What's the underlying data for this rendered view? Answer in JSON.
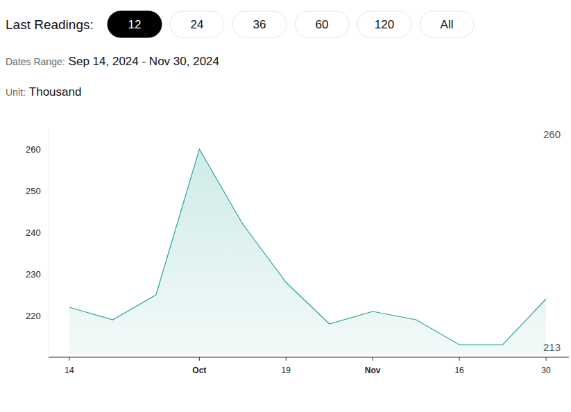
{
  "page": {
    "label": "Last Readings:",
    "buttons": [
      "12",
      "24",
      "36",
      "60",
      "120",
      "All"
    ],
    "active": "12",
    "dates_label": "Dates Range:",
    "dates_value": "Sep 14, 2024 - Nov 30, 2024",
    "unit_label": "Unit:",
    "unit_value": "Thousand"
  },
  "chart_data": {
    "type": "area",
    "categories": [
      "14",
      null,
      null,
      "Oct",
      null,
      "19",
      null,
      "Nov",
      null,
      "16",
      null,
      "30"
    ],
    "values": [
      222,
      219,
      225,
      260,
      242,
      228,
      218,
      221,
      219,
      213,
      213,
      224
    ],
    "color": "#26a69a",
    "ylim": [
      210,
      265
    ],
    "yticks": [
      220,
      230,
      240,
      250,
      260
    ],
    "grid": false,
    "max_label": 260,
    "min_label": 213
  }
}
